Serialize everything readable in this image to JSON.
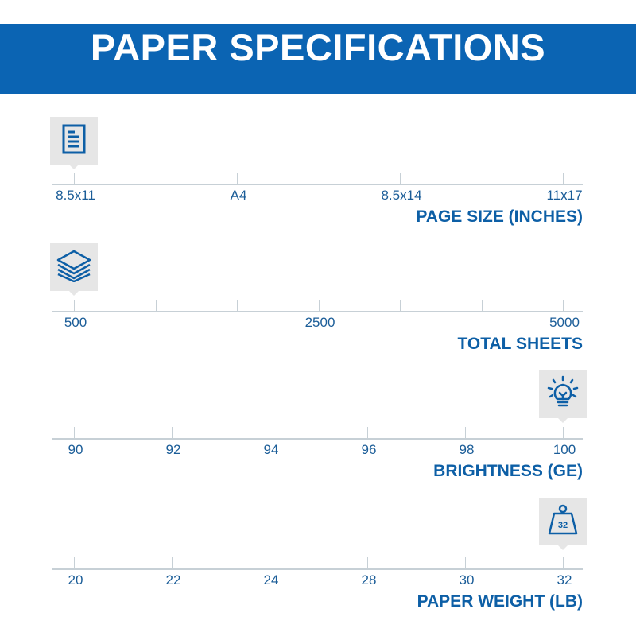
{
  "title": "PAPER SPECIFICATIONS",
  "colors": {
    "banner": "#0b64b3",
    "text": "#1b5d98",
    "axis": "#c7d0d6",
    "icon_box": "#e6e6e6"
  },
  "scales": [
    {
      "name": "page-size",
      "title": "PAGE SIZE (INCHES)",
      "icon": "document-icon",
      "ticks": [
        "8.5x11",
        "A4",
        "8.5x14",
        "11x17"
      ],
      "selected_index": 0
    },
    {
      "name": "total-sheets",
      "title": "TOTAL SHEETS",
      "icon": "paper-stack-icon",
      "ticks": [
        "500",
        "",
        "",
        "2500",
        "",
        "",
        "5000"
      ],
      "selected_index": 0
    },
    {
      "name": "brightness",
      "title": "BRIGHTNESS (GE)",
      "icon": "lightbulb-icon",
      "ticks": [
        "90",
        "92",
        "94",
        "96",
        "98",
        "100"
      ],
      "selected_index": 5
    },
    {
      "name": "paper-weight",
      "title": "PAPER WEIGHT (LB)",
      "icon": "weight-icon",
      "icon_text": "32",
      "ticks": [
        "20",
        "22",
        "24",
        "28",
        "30",
        "32"
      ],
      "selected_index": 5
    }
  ]
}
